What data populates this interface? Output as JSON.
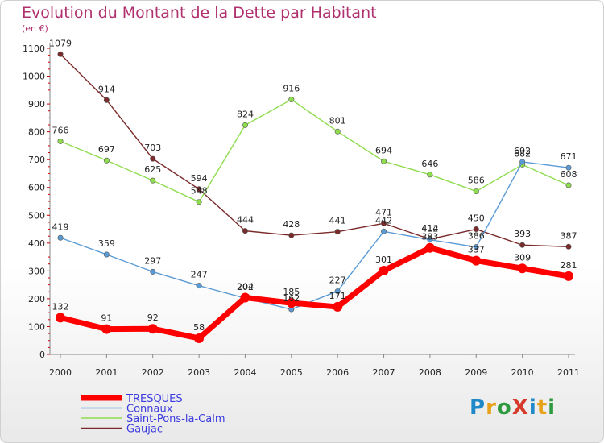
{
  "title": "Evolution du Montant de la Dette par Habitant",
  "subtitle": "(en €)",
  "logo": {
    "text": "ProXiti",
    "colors": [
      "#1e88c8",
      "#e8a21a",
      "#2e9a3e",
      "#d63a2a",
      "#1e88c8",
      "#e8a21a",
      "#2e9a3e"
    ]
  },
  "chart_data": {
    "type": "line",
    "x": [
      2000,
      2001,
      2002,
      2003,
      2004,
      2005,
      2006,
      2007,
      2008,
      2009,
      2010,
      2011
    ],
    "ylim": [
      0,
      1100
    ],
    "yticks": [
      0,
      100,
      200,
      300,
      400,
      500,
      600,
      700,
      800,
      900,
      1000,
      1100
    ],
    "grid": false,
    "legend_position": "bottom-left",
    "series": [
      {
        "name": "TRESQUES",
        "color": "#ff0000",
        "values": [
          132,
          91,
          92,
          58,
          204,
          185,
          171,
          301,
          383,
          337,
          309,
          281
        ]
      },
      {
        "name": "Connaux",
        "color": "#5b9bd5",
        "values": [
          419,
          359,
          297,
          247,
          202,
          162,
          227,
          442,
          412,
          386,
          692,
          671
        ]
      },
      {
        "name": "Saint-Pons-la-Calm",
        "color": "#8fdc4f",
        "values": [
          766,
          697,
          625,
          548,
          824,
          916,
          801,
          694,
          646,
          586,
          682,
          608
        ]
      },
      {
        "name": "Gaujac",
        "color": "#7a2a2a",
        "values": [
          1079,
          914,
          703,
          594,
          444,
          428,
          441,
          471,
          414,
          450,
          393,
          387
        ]
      }
    ]
  }
}
